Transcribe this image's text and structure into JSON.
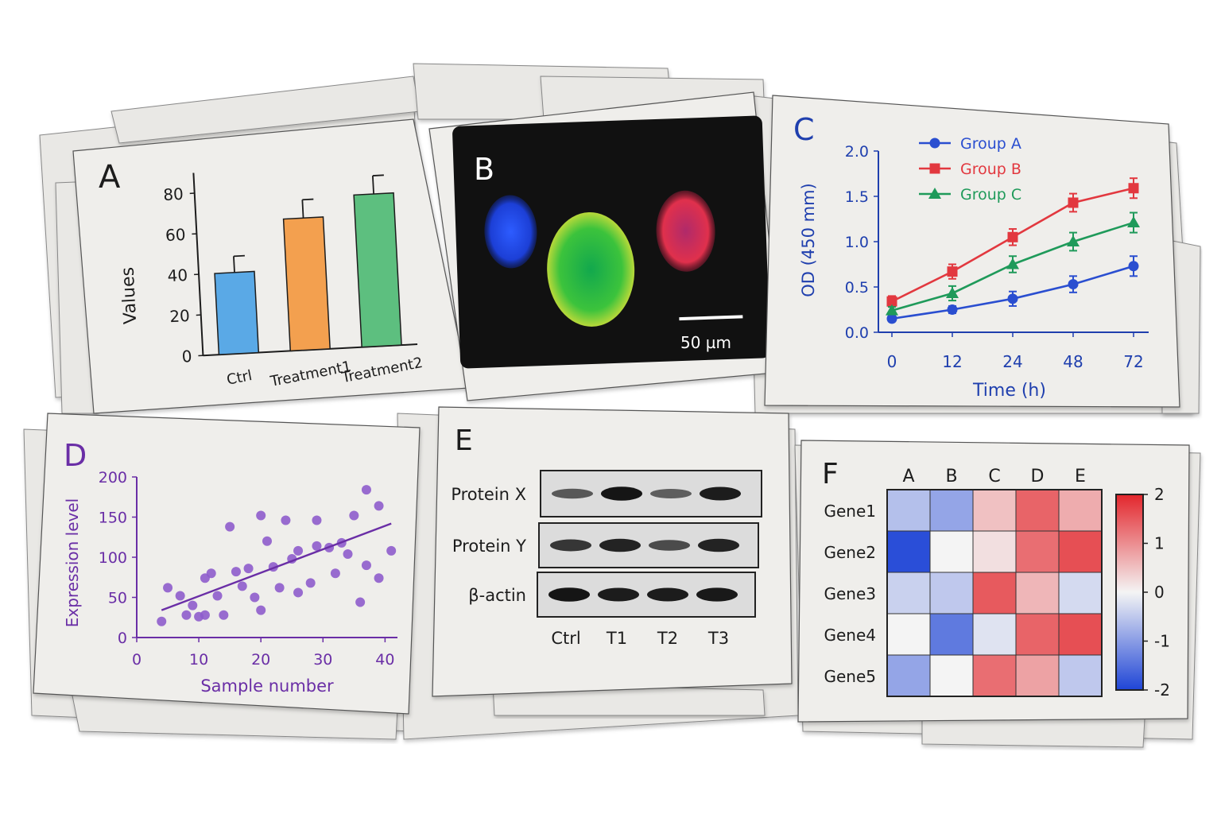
{
  "colors": {
    "paper": "#efeeeb",
    "paper_shadow": "#cfcfcd",
    "ink": "#1c1c1c",
    "panel_c_ink": "#1f3fae",
    "panel_d_ink": "#6a2ea6",
    "bar_ctrl": "#5aa9e6",
    "bar_t1": "#f3a04f",
    "bar_t2": "#5dbf7f",
    "group_a": "#2a4ed0",
    "group_b": "#e2383f",
    "group_c": "#1f9a5a",
    "heat_low": "#1f45d6",
    "heat_mid": "#f4f4f4",
    "heat_high": "#e3262c"
  },
  "panels": {
    "a": {
      "letter": "A"
    },
    "b": {
      "letter": "B",
      "scale_label": "50 µm"
    },
    "c": {
      "letter": "C"
    },
    "d": {
      "letter": "D"
    },
    "e": {
      "letter": "E"
    },
    "f": {
      "letter": "F"
    }
  },
  "chart_data": [
    {
      "panel": "A",
      "type": "bar",
      "categories": [
        "Ctrl",
        "Treatment1",
        "Treatment2"
      ],
      "values": [
        40,
        65,
        75
      ],
      "errors": [
        8,
        9,
        9
      ],
      "xlabel": "",
      "ylabel": "Values",
      "ylim": [
        0,
        90
      ],
      "yticks": [
        0,
        20,
        40,
        60,
        80
      ],
      "grid": false
    },
    {
      "panel": "C",
      "type": "line",
      "x": [
        "0",
        "12",
        "24",
        "48",
        "72"
      ],
      "series": [
        {
          "name": "Group A",
          "values": [
            0.15,
            0.25,
            0.37,
            0.53,
            0.73
          ],
          "errors": [
            0.03,
            0.04,
            0.08,
            0.09,
            0.11
          ]
        },
        {
          "name": "Group B",
          "values": [
            0.34,
            0.67,
            1.05,
            1.43,
            1.59
          ],
          "errors": [
            0.06,
            0.08,
            0.09,
            0.1,
            0.11
          ]
        },
        {
          "name": "Group C",
          "values": [
            0.24,
            0.43,
            0.75,
            1.0,
            1.21
          ],
          "errors": [
            0.04,
            0.08,
            0.09,
            0.1,
            0.11
          ]
        }
      ],
      "xlabel": "Time (h)",
      "ylabel": "OD (450 mm)",
      "ylim": [
        0,
        2.0
      ],
      "yticks": [
        "0.0",
        "0.5",
        "1.0",
        "1.5",
        "2.0"
      ],
      "legend": "top-left",
      "grid": false
    },
    {
      "panel": "D",
      "type": "scatter",
      "points": [
        [
          4,
          20
        ],
        [
          5,
          62
        ],
        [
          7,
          52
        ],
        [
          8,
          28
        ],
        [
          9,
          40
        ],
        [
          10,
          26
        ],
        [
          11,
          28
        ],
        [
          11,
          74
        ],
        [
          12,
          80
        ],
        [
          13,
          52
        ],
        [
          14,
          28
        ],
        [
          15,
          138
        ],
        [
          16,
          82
        ],
        [
          17,
          64
        ],
        [
          18,
          86
        ],
        [
          19,
          50
        ],
        [
          20,
          34
        ],
        [
          20,
          152
        ],
        [
          21,
          120
        ],
        [
          22,
          88
        ],
        [
          23,
          62
        ],
        [
          24,
          146
        ],
        [
          25,
          98
        ],
        [
          26,
          108
        ],
        [
          26,
          56
        ],
        [
          28,
          68
        ],
        [
          29,
          146
        ],
        [
          29,
          114
        ],
        [
          31,
          112
        ],
        [
          32,
          80
        ],
        [
          33,
          118
        ],
        [
          34,
          104
        ],
        [
          35,
          152
        ],
        [
          36,
          44
        ],
        [
          37,
          184
        ],
        [
          37,
          90
        ],
        [
          39,
          164
        ],
        [
          39,
          74
        ],
        [
          41,
          108
        ]
      ],
      "trendline": {
        "x": [
          4,
          41
        ],
        "y": [
          34,
          142
        ]
      },
      "xlabel": "Sample number",
      "ylabel": "Expression level",
      "xlim": [
        0,
        42
      ],
      "ylim": [
        0,
        200
      ],
      "xticks": [
        0,
        10,
        20,
        30,
        40
      ],
      "yticks": [
        0,
        50,
        100,
        150,
        200
      ],
      "grid": false
    },
    {
      "panel": "E",
      "type": "table",
      "rows": [
        "Protein X",
        "Protein Y",
        "β-actin"
      ],
      "lanes": [
        "Ctrl",
        "T1",
        "T2",
        "T3"
      ],
      "intensity": [
        [
          0.45,
          0.95,
          0.4,
          0.9
        ],
        [
          0.7,
          0.85,
          0.55,
          0.85
        ],
        [
          0.95,
          0.9,
          0.9,
          0.92
        ]
      ]
    },
    {
      "panel": "F",
      "type": "heatmap",
      "columns": [
        "A",
        "B",
        "C",
        "D",
        "E"
      ],
      "rows": [
        "Gene1",
        "Gene2",
        "Gene3",
        "Gene4",
        "Gene5"
      ],
      "values": [
        [
          -0.6,
          -0.9,
          0.5,
          1.4,
          0.7
        ],
        [
          -1.9,
          0.0,
          0.2,
          1.3,
          1.6
        ],
        [
          -0.4,
          -0.5,
          1.5,
          0.6,
          -0.3
        ],
        [
          0.0,
          -1.4,
          -0.2,
          1.4,
          1.6
        ],
        [
          -0.9,
          0.0,
          1.3,
          0.8,
          -0.5
        ]
      ],
      "colorbar_ticks": [
        "2",
        "1",
        "0",
        "-1",
        "-2"
      ],
      "vmin": -2,
      "vmax": 2
    }
  ]
}
